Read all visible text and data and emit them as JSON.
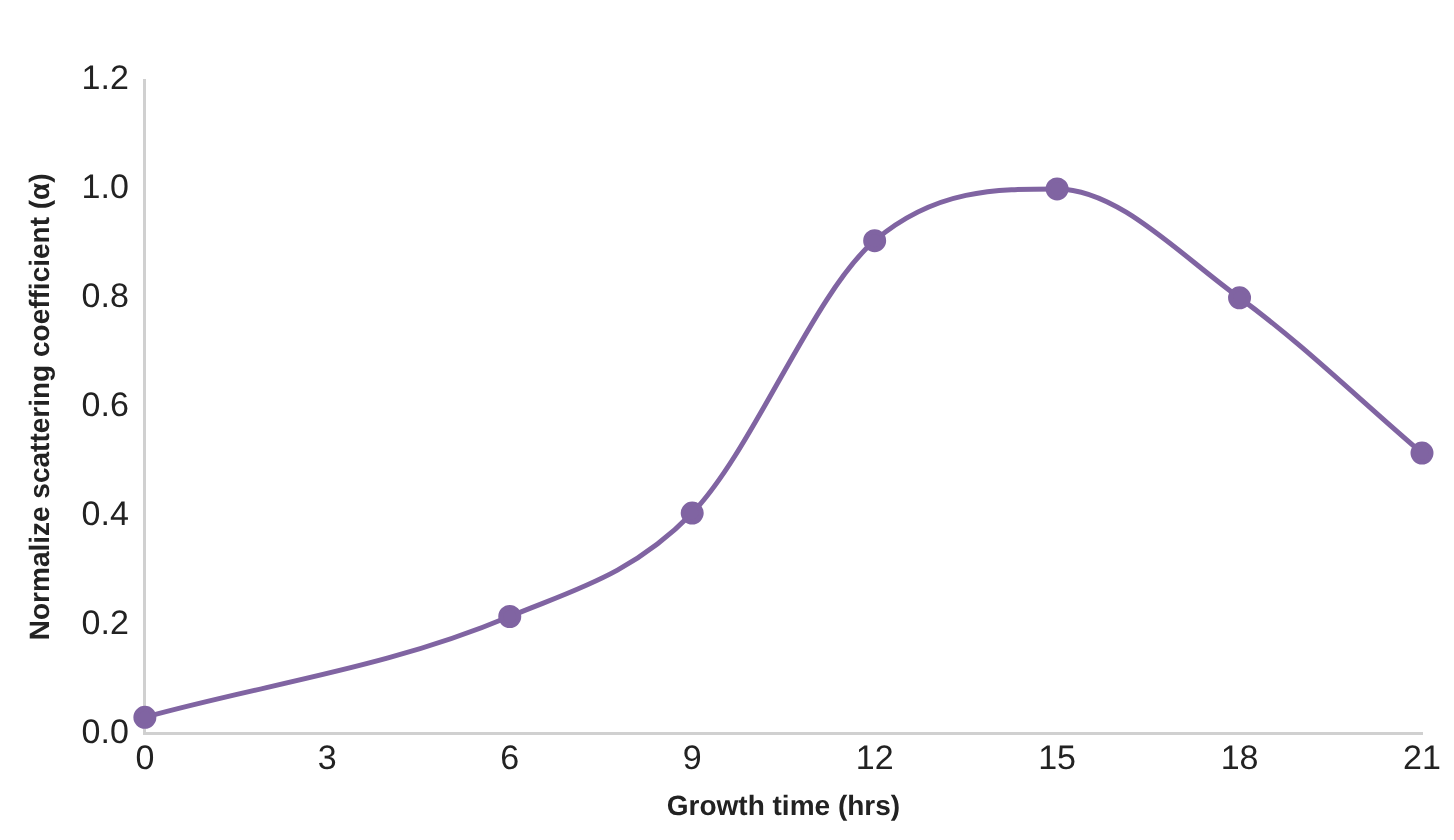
{
  "chart_data": {
    "type": "line",
    "xlabel": "Growth time (hrs)",
    "ylabel": "Normalize scattering coefficient (α)",
    "x": [
      0,
      6,
      9,
      12,
      15,
      18,
      21
    ],
    "series": [
      {
        "color": "#8064a2",
        "values": [
          0.03,
          0.215,
          0.405,
          0.905,
          1.0,
          0.8,
          0.515
        ]
      }
    ],
    "xlim": [
      0,
      21
    ],
    "xticks": [
      0,
      3,
      6,
      9,
      12,
      15,
      18,
      21
    ],
    "ylim": [
      0,
      1.2
    ],
    "yticks": [
      {
        "value": 0,
        "label": "0.0"
      },
      {
        "value": 0.2,
        "label": "0.2"
      },
      {
        "value": 0.4,
        "label": "0.4"
      },
      {
        "value": 0.6,
        "label": "0.6"
      },
      {
        "value": 0.8,
        "label": "0.8"
      },
      {
        "value": 1,
        "label": "1.0"
      },
      {
        "value": 1.2,
        "label": "1.2"
      }
    ],
    "grid": false,
    "legend": false,
    "marker": "circle",
    "line_style": "solid"
  }
}
